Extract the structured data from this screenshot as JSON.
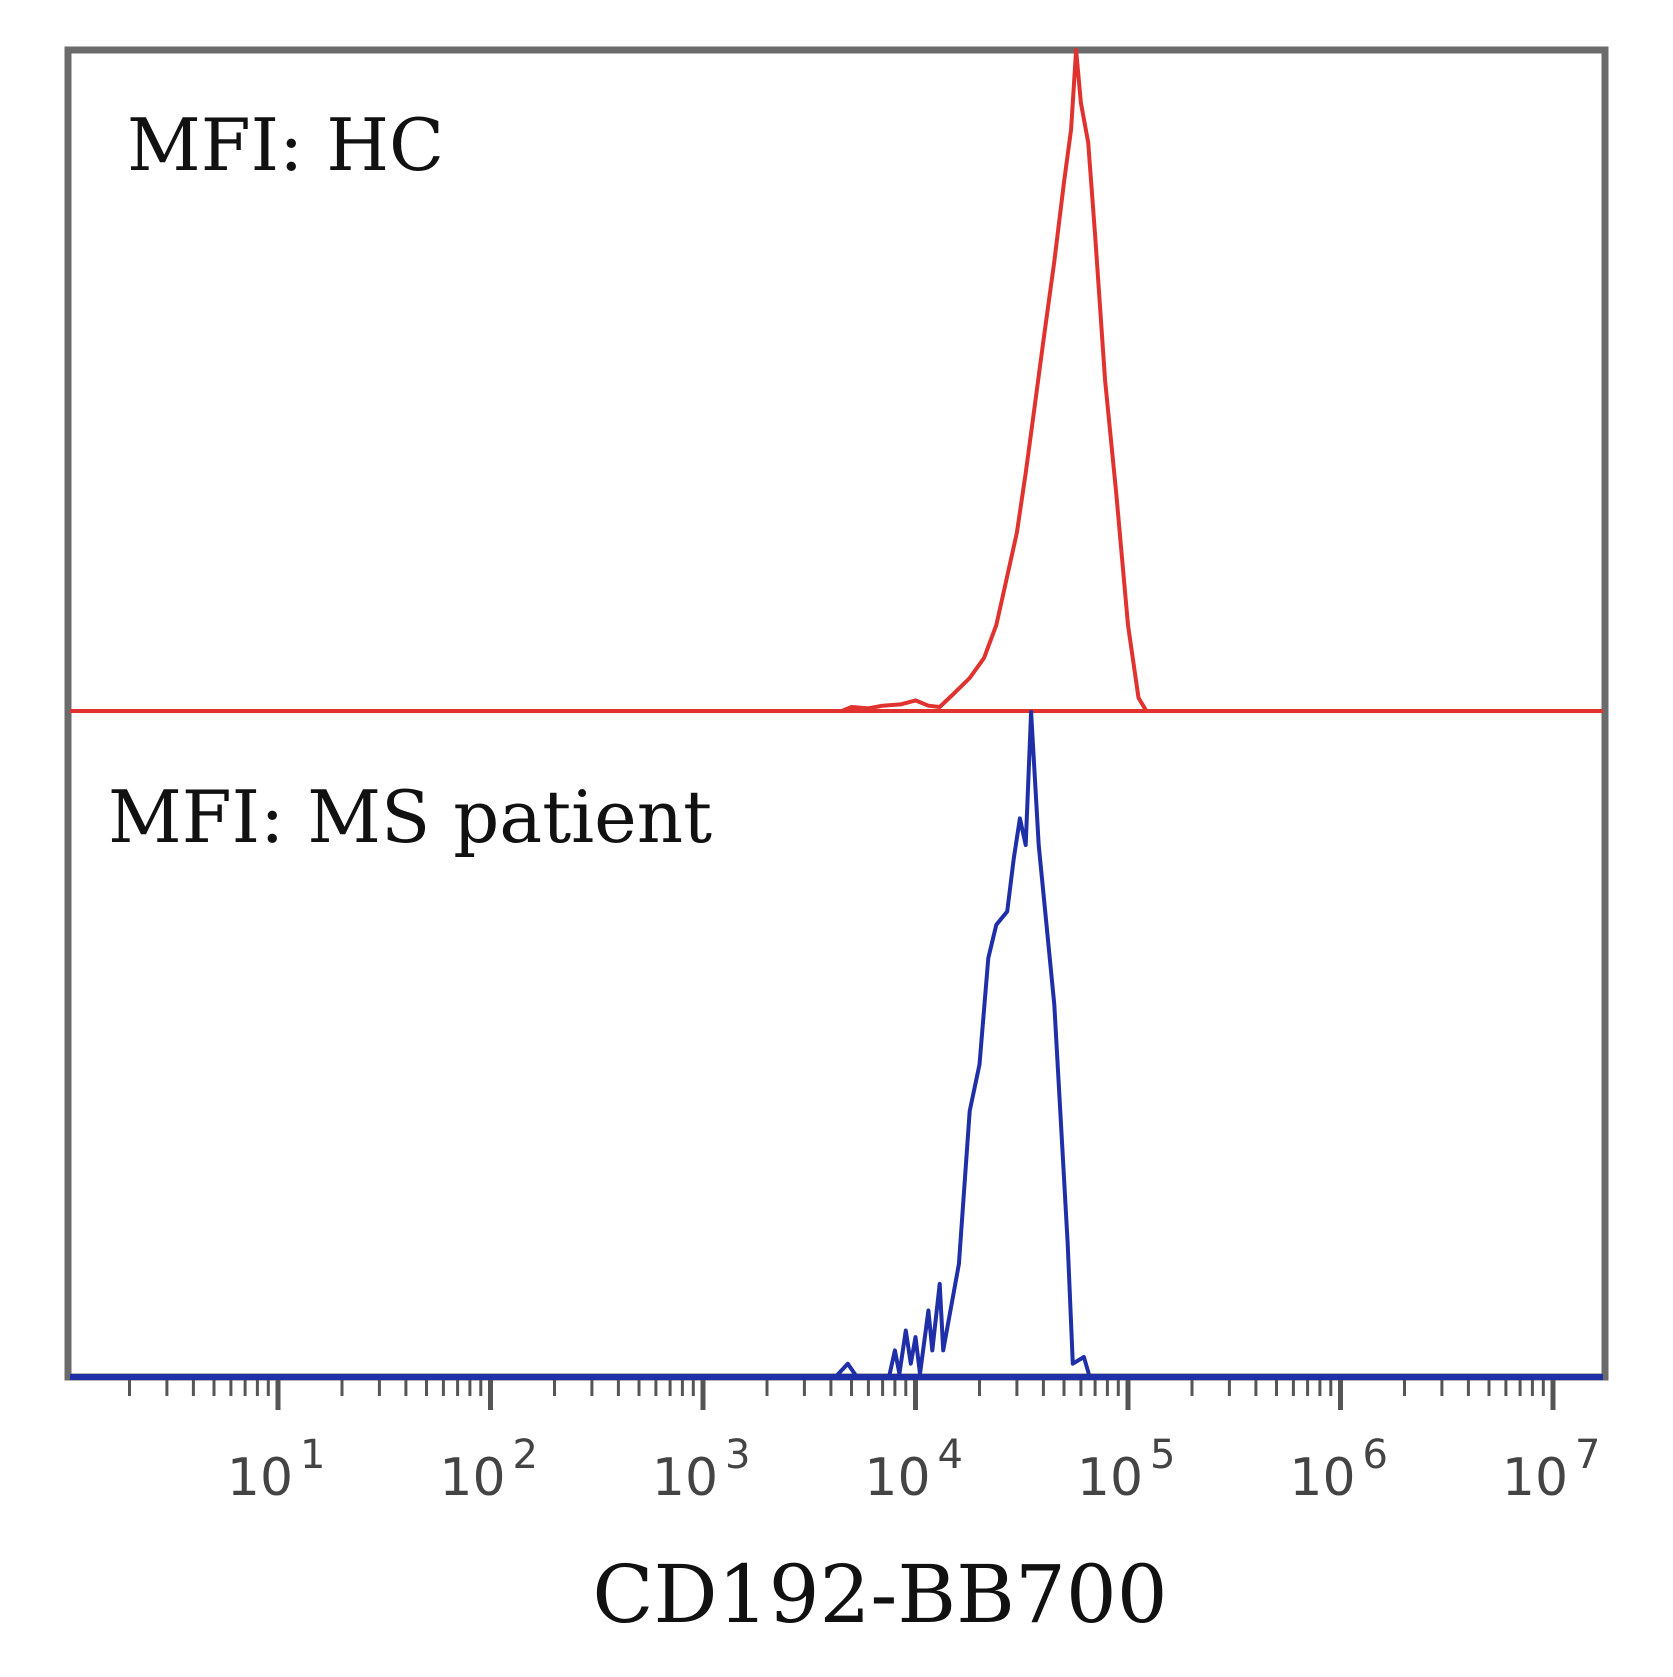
{
  "chart_data": {
    "type": "line",
    "subtype": "stacked-histogram-overlay",
    "xlabel": "CD192-BB700",
    "x_scale": "log",
    "xlim": [
      1,
      50000000
    ],
    "x_ticks": [
      {
        "value": 10,
        "base": "10",
        "exp": "1"
      },
      {
        "value": 100,
        "base": "10",
        "exp": "2"
      },
      {
        "value": 1000,
        "base": "10",
        "exp": "3"
      },
      {
        "value": 10000,
        "base": "10",
        "exp": "4"
      },
      {
        "value": 100000,
        "base": "10",
        "exp": "5"
      },
      {
        "value": 1000000,
        "base": "10",
        "exp": "6"
      },
      {
        "value": 10000000,
        "base": "10",
        "exp": "7"
      }
    ],
    "panels": [
      {
        "label": "MFI: HC",
        "color": "#e0332f",
        "ylim": [
          0,
          100
        ],
        "points": [
          [
            4500,
            0
          ],
          [
            5000,
            0.6
          ],
          [
            6000,
            0.4
          ],
          [
            7000,
            0.8
          ],
          [
            8500,
            1.0
          ],
          [
            10000,
            1.6
          ],
          [
            11500,
            0.8
          ],
          [
            13000,
            0.6
          ],
          [
            15000,
            2.5
          ],
          [
            18000,
            5.0
          ],
          [
            21000,
            8.0
          ],
          [
            24000,
            13.0
          ],
          [
            26000,
            18.0
          ],
          [
            30000,
            27.0
          ],
          [
            33000,
            36.0
          ],
          [
            36000,
            45.0
          ],
          [
            40000,
            56.0
          ],
          [
            45000,
            68.0
          ],
          [
            50000,
            80.0
          ],
          [
            54000,
            88.0
          ],
          [
            57000,
            100.0
          ],
          [
            60000,
            92.0
          ],
          [
            65000,
            86.0
          ],
          [
            70000,
            72.0
          ],
          [
            78000,
            50.0
          ],
          [
            88000,
            33.0
          ],
          [
            100000,
            13.0
          ],
          [
            112000,
            2.0
          ],
          [
            122000,
            0
          ]
        ]
      },
      {
        "label": "MFI: MS patient",
        "color": "#1f2fa8",
        "ylim": [
          0,
          100
        ],
        "points": [
          [
            4200,
            0
          ],
          [
            4800,
            2.0
          ],
          [
            5300,
            0
          ],
          [
            7500,
            0
          ],
          [
            8000,
            4.0
          ],
          [
            8400,
            0.5
          ],
          [
            9000,
            7.0
          ],
          [
            9500,
            2.0
          ],
          [
            10000,
            6.0
          ],
          [
            10500,
            0.5
          ],
          [
            11500,
            10.0
          ],
          [
            12000,
            4.0
          ],
          [
            13000,
            14.0
          ],
          [
            13500,
            4.0
          ],
          [
            16000,
            17.0
          ],
          [
            18000,
            40.0
          ],
          [
            20000,
            47.0
          ],
          [
            22000,
            63.0
          ],
          [
            24000,
            68.0
          ],
          [
            27000,
            70.0
          ],
          [
            29000,
            78.0
          ],
          [
            31000,
            84.0
          ],
          [
            33000,
            80.0
          ],
          [
            35000,
            100.0
          ],
          [
            38000,
            80.0
          ],
          [
            45000,
            56.0
          ],
          [
            52000,
            20.0
          ],
          [
            55000,
            2.0
          ],
          [
            62000,
            3.0
          ],
          [
            66000,
            0
          ]
        ]
      }
    ]
  }
}
